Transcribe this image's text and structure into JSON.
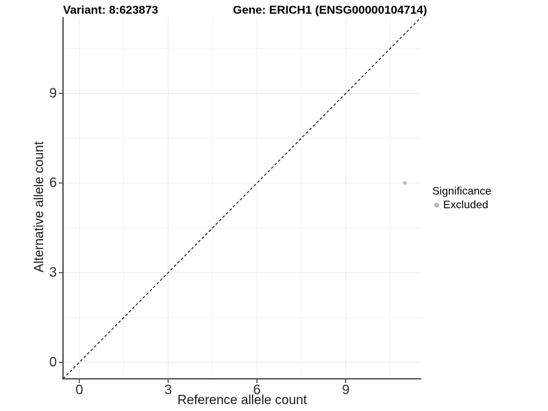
{
  "chart_data": {
    "type": "scatter",
    "title_variant": "Variant: 8:623873",
    "title_gene": "Gene: ERICH1 (ENSG00000104714)",
    "xlabel": "Reference allele count",
    "ylabel": "Alternative allele count",
    "xlim": [
      -0.55,
      11.55
    ],
    "ylim": [
      -0.55,
      11.55
    ],
    "xticks": [
      0,
      3,
      6,
      9
    ],
    "yticks": [
      0,
      3,
      6,
      9
    ],
    "xminor": [
      1.5,
      4.5,
      7.5,
      10.5
    ],
    "yminor": [
      1.5,
      4.5,
      7.5,
      10.5
    ],
    "grid": "major+minor",
    "series": [
      {
        "name": "Excluded",
        "color": "#b8b8b8",
        "points": [
          {
            "x": 11,
            "y": 6
          }
        ]
      }
    ],
    "reference_line": {
      "kind": "identity",
      "slope": 1,
      "intercept": 0,
      "style": "dashed",
      "color": "#000000"
    },
    "legend": {
      "title": "Significance",
      "position": "right",
      "items": [
        {
          "label": "Excluded",
          "color": "#b8b8b8"
        }
      ]
    },
    "colors": {
      "background": "#ffffff",
      "grid_major": "#e9e9e9",
      "grid_minor": "#f4f4f4",
      "axis_line": "#3c3c3c",
      "tick_mark": "#333333",
      "tick_label": "#303030"
    }
  }
}
